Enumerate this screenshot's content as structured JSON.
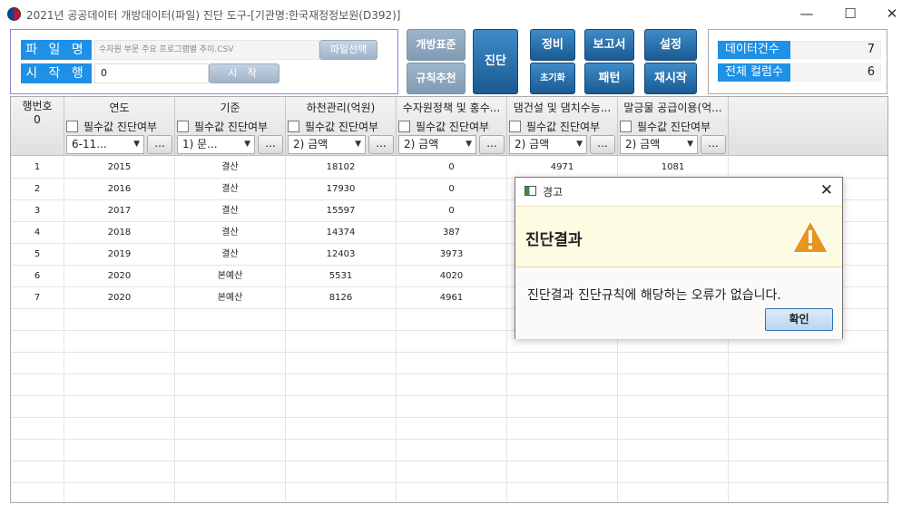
{
  "window": {
    "title": "2021년 공공데이터 개방데이터(파일) 진단 도구-[기관명:한국재정정보원(D392)]",
    "minimize": "—",
    "maximize": "☐",
    "close": "✕"
  },
  "file_panel": {
    "file_label": "파 일 명",
    "file_value": "수자원 부문 주요 프로그램별 추이.CSV",
    "file_button": "파일선택",
    "start_label": "시 작 행",
    "start_value": "0",
    "start_button": "시 작"
  },
  "toolbar": {
    "open_standard": "개방표준",
    "rule_recommend": "규칙추천",
    "diagnose": "진단",
    "cleanse": "정비",
    "reset": "초기화",
    "report": "보고서",
    "pattern": "패턴",
    "settings": "설정",
    "restart": "재시작"
  },
  "stats": {
    "data_count_label": "데이터건수",
    "data_count_value": "7",
    "column_count_label": "전체 컬럼수",
    "column_count_value": "6"
  },
  "grid": {
    "rownum_header": "행번호",
    "rownum_sub": "0",
    "required_label": "필수값 진단여부",
    "more_button": "...",
    "columns": [
      {
        "title": "연도",
        "combo": "6-11..."
      },
      {
        "title": "기준",
        "combo": "1) 문..."
      },
      {
        "title": "하천관리(억원)",
        "combo": "2) 금액"
      },
      {
        "title": "수자원정책 및 홍수...",
        "combo": "2) 금액"
      },
      {
        "title": "댐건설 및 댐치수능...",
        "combo": "2) 금액"
      },
      {
        "title": "말긍물 공급이용(억...",
        "combo": "2) 금액"
      }
    ],
    "rows": [
      {
        "num": "1",
        "cells": [
          "2015",
          "결산",
          "18102",
          "0",
          "4971",
          "1081"
        ]
      },
      {
        "num": "2",
        "cells": [
          "2016",
          "결산",
          "17930",
          "0",
          "",
          ""
        ]
      },
      {
        "num": "3",
        "cells": [
          "2017",
          "결산",
          "15597",
          "0",
          "",
          ""
        ]
      },
      {
        "num": "4",
        "cells": [
          "2018",
          "결산",
          "14374",
          "387",
          "",
          ""
        ]
      },
      {
        "num": "5",
        "cells": [
          "2019",
          "결산",
          "12403",
          "3973",
          "",
          ""
        ]
      },
      {
        "num": "6",
        "cells": [
          "2020",
          "본예산",
          "5531",
          "4020",
          "",
          ""
        ]
      },
      {
        "num": "7",
        "cells": [
          "2020",
          "본예산",
          "8126",
          "4961",
          "",
          ""
        ]
      }
    ]
  },
  "dialog": {
    "title": "경고",
    "heading": "진단결과",
    "message": "진단결과 진단규칙에 해당하는 오류가 없습니다.",
    "ok_button": "확인",
    "close": "✕"
  },
  "colors": {
    "label_blue": "#1e90e6",
    "button_blue": "#1a5a92",
    "warning_orange": "#e8951f",
    "dialog_header_bg": "#fdfbe2"
  }
}
